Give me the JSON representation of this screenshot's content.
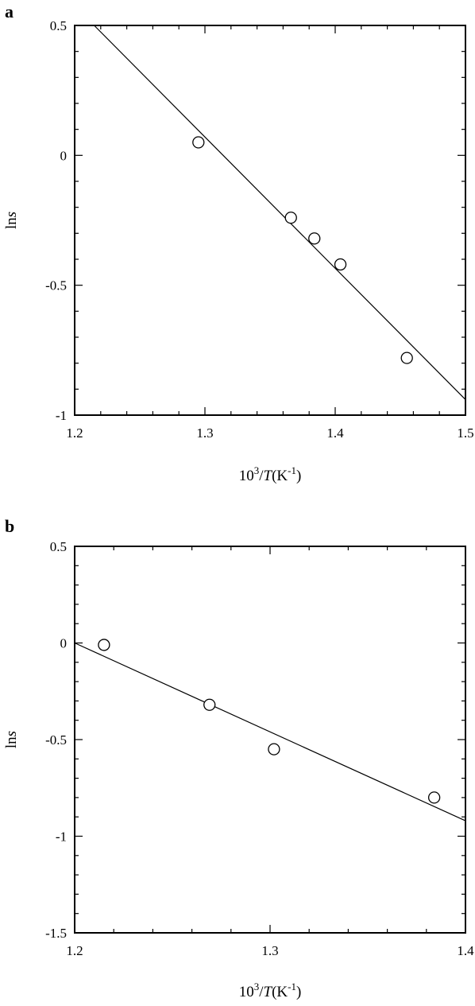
{
  "chart_data": [
    {
      "type": "scatter",
      "panel": "a",
      "xlabel": "10^3/T(K^-1)",
      "ylabel": "lns",
      "xlim": [
        1.2,
        1.5
      ],
      "ylim": [
        -1,
        0.5
      ],
      "xticks": [
        "1.2",
        "1.3",
        "1.4",
        "1.5"
      ],
      "yticks": [
        "0.5",
        "0",
        "-0.5",
        "-1"
      ],
      "grid": false,
      "series": [
        {
          "marker": "open-circle",
          "x": [
            1.295,
            1.366,
            1.384,
            1.404,
            1.455
          ],
          "y": [
            0.05,
            -0.24,
            -0.32,
            -0.42,
            -0.78
          ]
        }
      ],
      "fit_line": {
        "x": [
          1.215,
          1.5
        ],
        "y": [
          0.5,
          -0.94
        ]
      }
    },
    {
      "type": "scatter",
      "panel": "b",
      "xlabel": "10^3/T(K^-1)",
      "ylabel": "lns",
      "xlim": [
        1.2,
        1.4
      ],
      "ylim": [
        -1.5,
        0.5
      ],
      "xticks": [
        "1.2",
        "1.3",
        "1.4"
      ],
      "yticks": [
        "0.5",
        "0",
        "-0.5",
        "-1",
        "-1.5"
      ],
      "grid": false,
      "series": [
        {
          "marker": "open-circle",
          "x": [
            1.215,
            1.269,
            1.302,
            1.384
          ],
          "y": [
            -0.01,
            -0.32,
            -0.55,
            -0.8
          ]
        }
      ],
      "fit_line": {
        "x": [
          1.2,
          1.4
        ],
        "y": [
          0.0,
          -0.92
        ]
      }
    }
  ]
}
